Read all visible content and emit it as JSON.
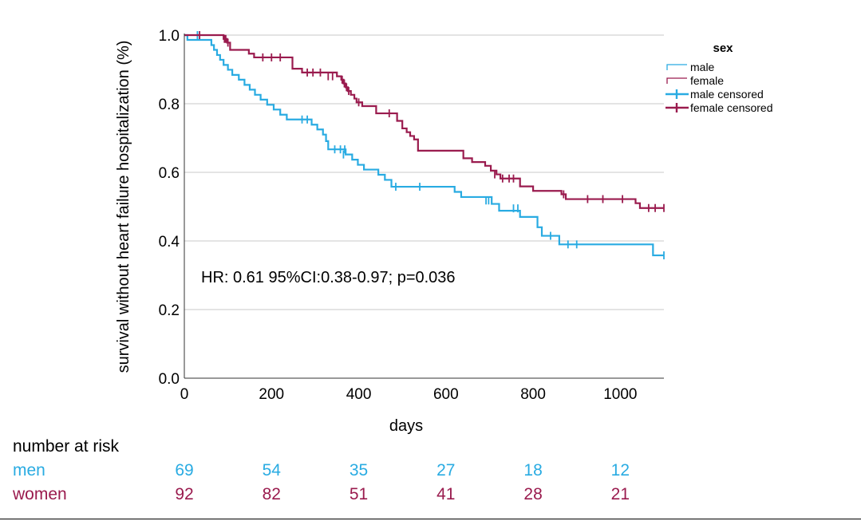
{
  "chart_data": {
    "type": "line",
    "subtype": "kaplan-meier step",
    "xlabel": "days",
    "ylabel": "survival without heart failure hospitalization (%)",
    "xlim": [
      0,
      1100
    ],
    "ylim": [
      0.0,
      1.0
    ],
    "x_ticks": [
      "0",
      "200",
      "400",
      "600",
      "800",
      "1000"
    ],
    "y_ticks": [
      "0.0",
      "0.2",
      "0.4",
      "0.6",
      "0.8",
      "1.0"
    ],
    "grid": "horizontal",
    "annotation": "HR: 0.61 95%CI:0.38-0.97; p=0.036",
    "legend": {
      "title": "sex",
      "position": "right",
      "entries": [
        "male",
        "female",
        "male censored",
        "female censored"
      ]
    },
    "series": [
      {
        "name": "male",
        "color": "#29ABE2",
        "steps": [
          [
            0,
            1.0
          ],
          [
            7,
            0.986
          ],
          [
            62,
            0.971
          ],
          [
            68,
            0.957
          ],
          [
            75,
            0.942
          ],
          [
            82,
            0.928
          ],
          [
            90,
            0.913
          ],
          [
            100,
            0.899
          ],
          [
            110,
            0.884
          ],
          [
            125,
            0.87
          ],
          [
            138,
            0.855
          ],
          [
            150,
            0.841
          ],
          [
            162,
            0.826
          ],
          [
            175,
            0.812
          ],
          [
            190,
            0.797
          ],
          [
            205,
            0.783
          ],
          [
            220,
            0.768
          ],
          [
            235,
            0.754
          ],
          [
            292,
            0.739
          ],
          [
            305,
            0.725
          ],
          [
            318,
            0.71
          ],
          [
            325,
            0.691
          ],
          [
            330,
            0.667
          ],
          [
            370,
            0.652
          ],
          [
            385,
            0.637
          ],
          [
            398,
            0.622
          ],
          [
            412,
            0.608
          ],
          [
            445,
            0.593
          ],
          [
            460,
            0.578
          ],
          [
            475,
            0.558
          ],
          [
            620,
            0.543
          ],
          [
            635,
            0.528
          ],
          [
            705,
            0.508
          ],
          [
            722,
            0.488
          ],
          [
            770,
            0.47
          ],
          [
            810,
            0.44
          ],
          [
            820,
            0.415
          ],
          [
            860,
            0.39
          ],
          [
            1075,
            0.358
          ],
          [
            1100,
            0.358
          ]
        ],
        "censored": [
          [
            30,
            1.0
          ],
          [
            270,
            0.754
          ],
          [
            282,
            0.754
          ],
          [
            345,
            0.667
          ],
          [
            358,
            0.667
          ],
          [
            365,
            0.652
          ],
          [
            368,
            0.667
          ],
          [
            485,
            0.558
          ],
          [
            540,
            0.558
          ],
          [
            692,
            0.518
          ],
          [
            698,
            0.518
          ],
          [
            755,
            0.495
          ],
          [
            765,
            0.495
          ],
          [
            840,
            0.415
          ],
          [
            880,
            0.39
          ],
          [
            900,
            0.39
          ],
          [
            1100,
            0.358
          ]
        ]
      },
      {
        "name": "female",
        "color": "#9A1B4E",
        "steps": [
          [
            0,
            1.0
          ],
          [
            90,
            0.989
          ],
          [
            98,
            0.978
          ],
          [
            105,
            0.957
          ],
          [
            148,
            0.946
          ],
          [
            160,
            0.935
          ],
          [
            248,
            0.902
          ],
          [
            270,
            0.891
          ],
          [
            350,
            0.88
          ],
          [
            360,
            0.87
          ],
          [
            365,
            0.859
          ],
          [
            370,
            0.848
          ],
          [
            375,
            0.837
          ],
          [
            382,
            0.826
          ],
          [
            390,
            0.815
          ],
          [
            395,
            0.804
          ],
          [
            408,
            0.793
          ],
          [
            440,
            0.772
          ],
          [
            488,
            0.75
          ],
          [
            500,
            0.728
          ],
          [
            510,
            0.717
          ],
          [
            518,
            0.706
          ],
          [
            527,
            0.696
          ],
          [
            536,
            0.663
          ],
          [
            640,
            0.641
          ],
          [
            660,
            0.63
          ],
          [
            690,
            0.619
          ],
          [
            703,
            0.605
          ],
          [
            716,
            0.594
          ],
          [
            725,
            0.582
          ],
          [
            770,
            0.559
          ],
          [
            800,
            0.546
          ],
          [
            865,
            0.536
          ],
          [
            875,
            0.522
          ],
          [
            1035,
            0.51
          ],
          [
            1045,
            0.496
          ],
          [
            1100,
            0.496
          ]
        ],
        "censored": [
          [
            35,
            1.0
          ],
          [
            92,
            0.989
          ],
          [
            95,
            0.989
          ],
          [
            100,
            0.978
          ],
          [
            180,
            0.935
          ],
          [
            200,
            0.935
          ],
          [
            220,
            0.935
          ],
          [
            282,
            0.891
          ],
          [
            295,
            0.891
          ],
          [
            312,
            0.891
          ],
          [
            330,
            0.88
          ],
          [
            340,
            0.88
          ],
          [
            362,
            0.87
          ],
          [
            367,
            0.859
          ],
          [
            372,
            0.848
          ],
          [
            377,
            0.837
          ],
          [
            400,
            0.804
          ],
          [
            470,
            0.772
          ],
          [
            712,
            0.594
          ],
          [
            730,
            0.582
          ],
          [
            745,
            0.582
          ],
          [
            755,
            0.582
          ],
          [
            870,
            0.536
          ],
          [
            925,
            0.522
          ],
          [
            960,
            0.522
          ],
          [
            1005,
            0.522
          ],
          [
            1065,
            0.496
          ],
          [
            1080,
            0.496
          ],
          [
            1100,
            0.496
          ]
        ]
      }
    ]
  },
  "risk_table": {
    "title": "number at risk",
    "rows": [
      {
        "label": "men",
        "color": "#29ABE2",
        "values": [
          "69",
          "54",
          "35",
          "27",
          "18",
          "12"
        ]
      },
      {
        "label": "women",
        "color": "#9A1B4E",
        "values": [
          "92",
          "82",
          "51",
          "41",
          "28",
          "21"
        ]
      }
    ]
  }
}
